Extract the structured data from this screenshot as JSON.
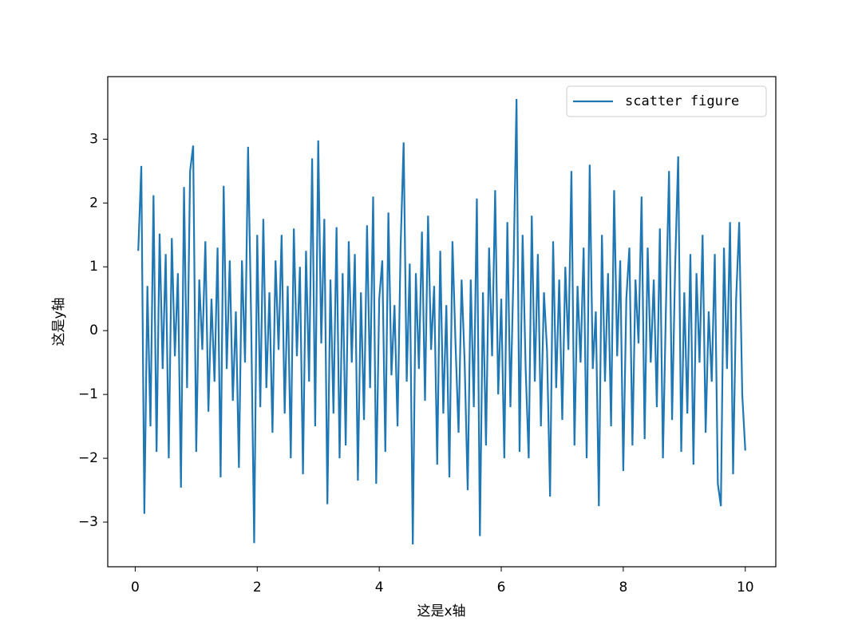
{
  "chart_data": {
    "type": "line",
    "x_label": "这是x轴",
    "y_label": "这是y轴",
    "legend_position": "upper right",
    "grid": false,
    "xlim": [
      -0.45,
      10.5
    ],
    "ylim": [
      -3.7,
      3.98
    ],
    "xticks": [
      0,
      2,
      4,
      6,
      8,
      10
    ],
    "yticks": [
      {
        "value": -3,
        "label": "−3"
      },
      {
        "value": -2,
        "label": "−2"
      },
      {
        "value": -1,
        "label": "−1"
      },
      0,
      1,
      2,
      3
    ],
    "x": [
      0.05,
      0.1,
      0.15,
      0.2,
      0.25,
      0.3,
      0.35,
      0.4,
      0.45,
      0.5,
      0.55,
      0.6,
      0.65,
      0.7,
      0.75,
      0.8,
      0.85,
      0.9,
      0.95,
      1.0,
      1.05,
      1.1,
      1.15,
      1.2,
      1.25,
      1.3,
      1.35,
      1.4,
      1.45,
      1.5,
      1.55,
      1.6,
      1.65,
      1.7,
      1.75,
      1.8,
      1.85,
      1.9,
      1.95,
      2.0,
      2.05,
      2.1,
      2.15,
      2.2,
      2.25,
      2.3,
      2.35,
      2.4,
      2.45,
      2.5,
      2.55,
      2.6,
      2.65,
      2.7,
      2.75,
      2.8,
      2.85,
      2.9,
      2.95,
      3.0,
      3.05,
      3.1,
      3.15,
      3.2,
      3.25,
      3.3,
      3.35,
      3.4,
      3.45,
      3.5,
      3.55,
      3.6,
      3.65,
      3.7,
      3.75,
      3.8,
      3.85,
      3.9,
      3.95,
      4.0,
      4.05,
      4.1,
      4.15,
      4.2,
      4.25,
      4.3,
      4.35,
      4.4,
      4.45,
      4.5,
      4.55,
      4.6,
      4.65,
      4.7,
      4.75,
      4.8,
      4.85,
      4.9,
      4.95,
      5.0,
      5.05,
      5.1,
      5.15,
      5.2,
      5.25,
      5.3,
      5.35,
      5.4,
      5.45,
      5.5,
      5.55,
      5.6,
      5.65,
      5.7,
      5.75,
      5.8,
      5.85,
      5.9,
      5.95,
      6.0,
      6.05,
      6.1,
      6.15,
      6.2,
      6.25,
      6.3,
      6.35,
      6.4,
      6.45,
      6.5,
      6.55,
      6.6,
      6.65,
      6.7,
      6.75,
      6.8,
      6.85,
      6.9,
      6.95,
      7.0,
      7.05,
      7.1,
      7.15,
      7.2,
      7.25,
      7.3,
      7.35,
      7.4,
      7.45,
      7.5,
      7.55,
      7.6,
      7.65,
      7.7,
      7.75,
      7.8,
      7.85,
      7.9,
      7.95,
      8.0,
      8.05,
      8.1,
      8.15,
      8.2,
      8.25,
      8.3,
      8.35,
      8.4,
      8.45,
      8.5,
      8.55,
      8.6,
      8.65,
      8.7,
      8.75,
      8.8,
      8.85,
      8.9,
      8.95,
      9.0,
      9.05,
      9.1,
      9.15,
      9.2,
      9.25,
      9.3,
      9.35,
      9.4,
      9.45,
      9.5,
      9.55,
      9.6,
      9.65,
      9.7,
      9.75,
      9.8,
      9.85,
      9.9,
      9.95,
      10.0
    ],
    "series": [
      {
        "name": "scatter figure",
        "color": "#1f77b4",
        "values": [
          1.25,
          2.58,
          -2.87,
          0.7,
          -1.5,
          2.12,
          -1.9,
          1.52,
          -0.6,
          1.2,
          -2.0,
          1.45,
          -0.4,
          0.9,
          -2.46,
          2.25,
          -0.9,
          2.5,
          2.9,
          -1.9,
          0.8,
          -0.3,
          1.4,
          -1.27,
          0.5,
          -0.8,
          1.3,
          -2.3,
          2.27,
          -0.6,
          1.1,
          -1.1,
          0.3,
          -2.15,
          1.1,
          -0.5,
          2.88,
          0.2,
          -3.33,
          1.5,
          -1.2,
          1.75,
          -0.9,
          0.6,
          -1.6,
          1.1,
          -0.3,
          1.5,
          -1.3,
          0.7,
          -2.0,
          1.6,
          -0.4,
          1.0,
          -2.25,
          1.25,
          -0.8,
          2.7,
          -1.5,
          2.98,
          -0.2,
          1.75,
          -2.72,
          0.8,
          -1.3,
          1.62,
          -2.0,
          0.9,
          -1.8,
          1.4,
          -0.5,
          1.2,
          -2.35,
          0.6,
          -1.4,
          1.65,
          -0.9,
          2.1,
          -2.4,
          0.5,
          1.1,
          -1.9,
          1.85,
          -0.7,
          0.4,
          -1.5,
          1.3,
          2.95,
          -0.8,
          1.05,
          -3.35,
          0.9,
          -0.6,
          1.55,
          -1.1,
          1.8,
          -0.3,
          0.7,
          -2.1,
          1.25,
          -1.3,
          0.4,
          -2.3,
          1.4,
          -0.2,
          -1.6,
          0.8,
          -0.5,
          -2.5,
          0.8,
          -1.2,
          2.07,
          -3.22,
          0.6,
          -1.8,
          1.3,
          -0.4,
          2.2,
          -1.0,
          0.5,
          -2.0,
          1.7,
          -1.2,
          0.9,
          3.63,
          -1.9,
          1.5,
          -0.6,
          -2.0,
          1.8,
          -0.8,
          1.2,
          -1.5,
          0.6,
          -0.3,
          -2.6,
          1.4,
          -0.9,
          0.8,
          -1.4,
          1.0,
          -0.3,
          2.5,
          -1.8,
          0.7,
          -0.5,
          1.3,
          -2.0,
          2.6,
          -0.6,
          0.3,
          -2.75,
          1.5,
          -0.8,
          0.9,
          -1.5,
          2.2,
          -0.4,
          1.1,
          -2.2,
          0.5,
          1.3,
          -1.8,
          0.8,
          -0.2,
          2.1,
          -1.7,
          1.3,
          -0.5,
          0.8,
          -1.2,
          1.6,
          -2.0,
          0.4,
          2.5,
          -1.4,
          1.0,
          2.73,
          -1.9,
          0.6,
          -1.3,
          1.2,
          -2.1,
          0.9,
          -0.5,
          1.5,
          -1.6,
          0.3,
          -0.8,
          1.2,
          -2.4,
          -2.75,
          1.3,
          -0.6,
          1.7,
          -2.25,
          0.5,
          1.7,
          -1.0,
          -1.88
        ]
      }
    ]
  }
}
